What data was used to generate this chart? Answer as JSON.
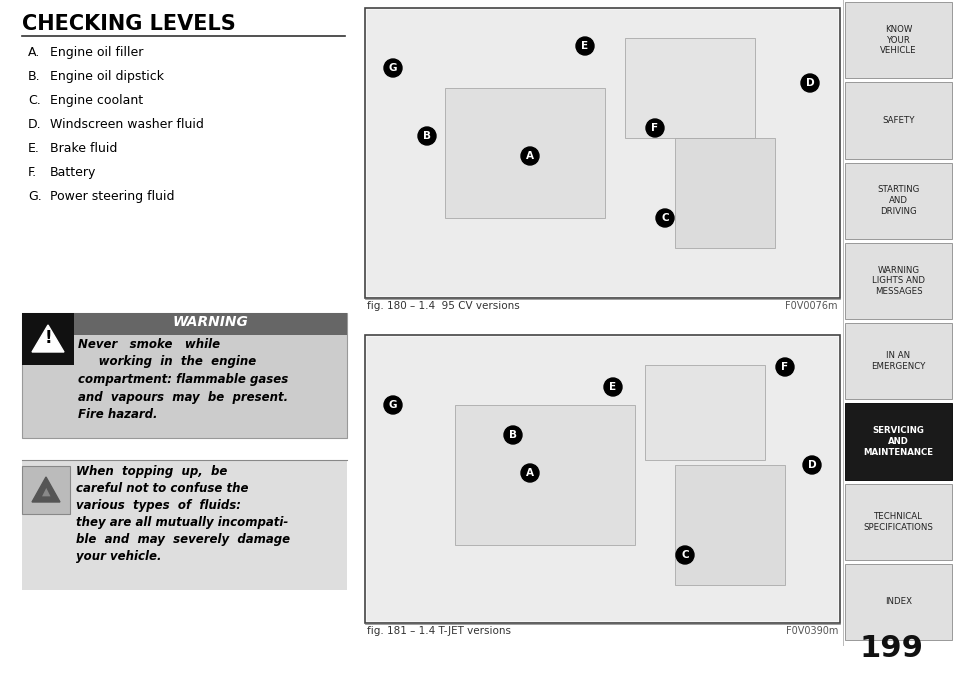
{
  "title": "CHECKING LEVELS",
  "items": [
    [
      "A.",
      "Engine oil filler"
    ],
    [
      "B.",
      "Engine oil dipstick"
    ],
    [
      "C.",
      "Engine coolant"
    ],
    [
      "D.",
      "Windscreen washer fluid"
    ],
    [
      "E.",
      "Brake fluid"
    ],
    [
      "F.",
      "Battery"
    ],
    [
      "G.",
      "Power steering fluid"
    ]
  ],
  "warning_title": "WARNING",
  "warning_text1": "Never   smoke   while",
  "warning_text2": "    working  in  the  engine\ncompartment: flammable gases\nand  vapours  may  be  present.\nFire hazard.",
  "note_text": "When  topping  up,  be\ncareful not to confuse the\nvarious  types  of  fluids:\nthey are all mutually incompati-\nble  and  may  severely  damage\nyour vehicle.",
  "fig1_caption": "fig. 180 – 1.4  95 CV versions",
  "fig1_code": "F0V0076m",
  "fig2_caption": "fig. 181 – 1.4 T-JET versions",
  "fig2_code": "F0V0390m",
  "nav_items": [
    "KNOW\nYOUR\nVEHICLE",
    "SAFETY",
    "STARTING\nAND\nDRIVING",
    "WARNING\nLIGHTS AND\nMESSAGES",
    "IN AN\nEMERGENCY",
    "SERVICING\nAND\nMAINTENANCE",
    "TECHNICAL\nSPECIFICATIONS",
    "INDEX"
  ],
  "nav_active": 5,
  "page_number": "199",
  "bg_color": "#ffffff",
  "nav_bg": "#e0e0e0",
  "nav_active_bg": "#1a1a1a",
  "nav_active_fg": "#ffffff",
  "nav_fg": "#222222",
  "warning_bg": "#cccccc",
  "warning_header_bg": "#666666",
  "note_bg": "#dedede",
  "image_bg": "#f5f5f5",
  "image_border": "#444444",
  "title_color": "#000000",
  "text_color": "#000000"
}
